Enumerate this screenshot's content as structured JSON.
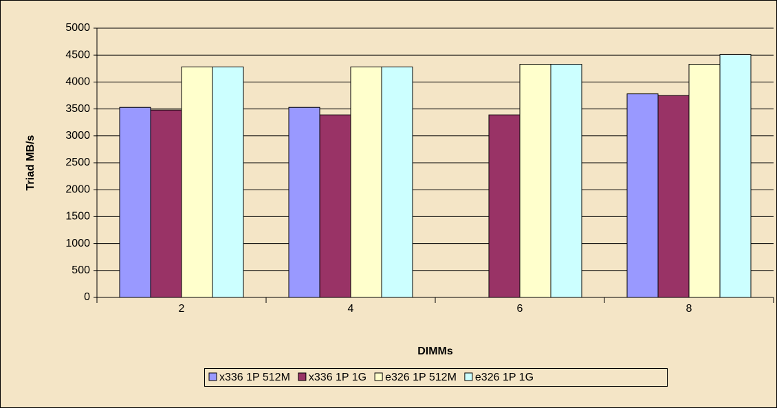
{
  "chart_data": {
    "type": "bar",
    "x_label": "DIMMs",
    "y_label": "Triad MB/s",
    "categories": [
      "2",
      "4",
      "6",
      "8"
    ],
    "series": [
      {
        "name": "x336 1P 512M",
        "color": "#9999ff",
        "values": [
          3530,
          3530,
          null,
          3780
        ]
      },
      {
        "name": "x336 1P 1G",
        "color": "#993366",
        "values": [
          3480,
          3390,
          3390,
          3750
        ]
      },
      {
        "name": "e326 1P 512M",
        "color": "#ffffcc",
        "values": [
          4280,
          4280,
          4330,
          4330
        ]
      },
      {
        "name": "e326 1P 1G",
        "color": "#ccffff",
        "values": [
          4280,
          4280,
          4330,
          4510
        ]
      }
    ],
    "ylim": [
      0,
      5000
    ],
    "yticks": [
      0,
      500,
      1000,
      1500,
      2000,
      2500,
      3000,
      3500,
      4000,
      4500,
      5000
    ],
    "grid": true,
    "legend": "bottom"
  }
}
